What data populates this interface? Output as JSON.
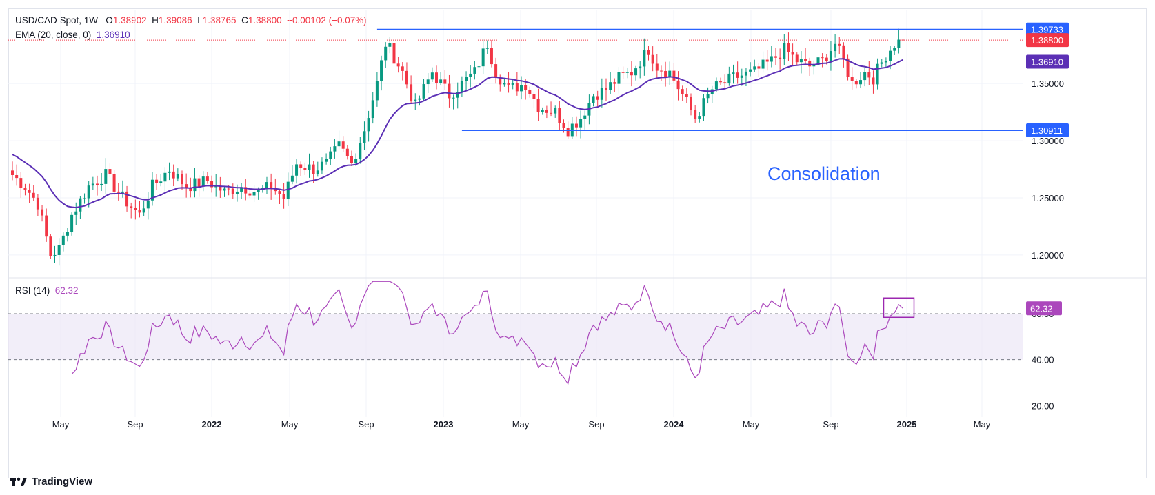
{
  "header": {
    "symbol": "USD/CAD Spot, 1W",
    "o_label": "O",
    "o_val": "1.38902",
    "h_label": "H",
    "h_val": "1.39086",
    "l_label": "L",
    "l_val": "1.38765",
    "c_label": "C",
    "c_val": "1.38800",
    "change": "−0.00102 (−0.07%)",
    "ema_label": "EMA (20, close, 0)",
    "ema_val": "1.36910",
    "rsi_label": "RSI (14)",
    "rsi_val": "62.32"
  },
  "annotation": "Consolidation",
  "brand": "TradingView",
  "colors": {
    "up": "#089981",
    "down": "#f23645",
    "ema": "#5b2fb5",
    "rsi": "#ab47bc",
    "level": "#2962ff",
    "box": "#9c27b0"
  },
  "chart_data": [
    {
      "type": "candlestick",
      "title": "USD/CAD Spot, 1W",
      "x_tick_labels": [
        "May",
        "Sep",
        "2022",
        "May",
        "Sep",
        "2023",
        "May",
        "Sep",
        "2024",
        "May",
        "Sep",
        "2025",
        "May"
      ],
      "y_tick_labels": [
        "1.20000",
        "1.25000",
        "1.30000",
        "1.35000"
      ],
      "ylim": [
        1.18,
        1.405
      ],
      "price_tags": [
        {
          "label": "1.39733",
          "value": 1.39733,
          "color": "#2962ff"
        },
        {
          "label": "1.38800",
          "value": 1.388,
          "color": "#f23645"
        },
        {
          "label": "1.36910",
          "value": 1.3691,
          "color": "#5b2fb5"
        },
        {
          "label": "1.30911",
          "value": 1.30911,
          "color": "#2962ff"
        }
      ],
      "levels": [
        {
          "name": "resistance",
          "value": 1.39733,
          "from": "2022-10"
        },
        {
          "name": "support",
          "value": 1.30911,
          "from": "2023-01"
        }
      ],
      "last_close": 1.388,
      "ema_last": 1.3691,
      "indicators": [
        "EMA (20, close, 0)"
      ]
    },
    {
      "type": "line",
      "title": "RSI (14)",
      "y_tick_labels": [
        "20.00",
        "40.00",
        "60.00"
      ],
      "ylim": [
        15,
        75
      ],
      "band": [
        40,
        60
      ],
      "last_value": 62.32,
      "last_label": "62.32"
    }
  ]
}
